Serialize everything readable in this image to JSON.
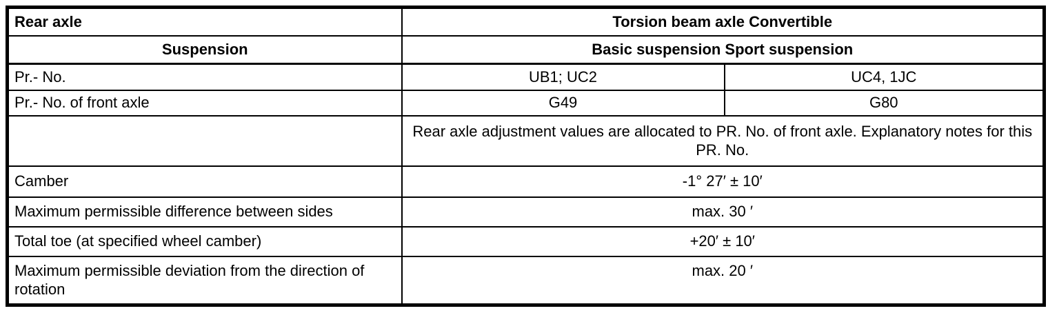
{
  "table": {
    "header": {
      "rear_axle_label": "Rear axle",
      "axle_type": "Torsion beam axle Convertible",
      "suspension_label": "Suspension",
      "suspension_types": "Basic suspension Sport suspension"
    },
    "rows": [
      {
        "label": "Pr.- No.",
        "basic": "UB1; UC2",
        "sport": "UC4, 1JC"
      },
      {
        "label": "Pr.- No. of front axle",
        "basic": "G49",
        "sport": "G80"
      },
      {
        "label": "",
        "note": "Rear axle adjustment values are allocated to PR. No. of front axle. Explanatory notes for this PR. No."
      },
      {
        "label": "Camber",
        "value": "-1° 27′ ± 10′"
      },
      {
        "label": "Maximum permissible difference between sides",
        "value": "max. 30 ′"
      },
      {
        "label": "Total toe (at specified wheel camber)",
        "value": "+20′ ± 10′"
      },
      {
        "label": "Maximum permissible deviation from the direction of rotation",
        "value": "max. 20 ′"
      }
    ],
    "colors": {
      "border": "#000000",
      "text": "#000000",
      "background": "#ffffff"
    }
  }
}
